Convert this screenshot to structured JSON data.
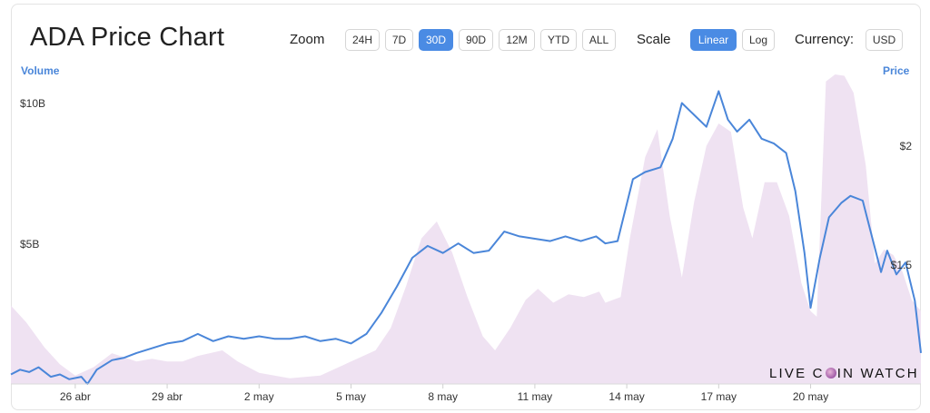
{
  "title": "ADA Price Chart",
  "zoom": {
    "label": "Zoom",
    "options": [
      "24H",
      "7D",
      "30D",
      "90D",
      "12M",
      "YTD",
      "ALL"
    ],
    "selected": "30D"
  },
  "scale": {
    "label": "Scale",
    "options": [
      "Linear",
      "Log"
    ],
    "selected": "Linear"
  },
  "currency": {
    "label": "Currency:",
    "value": "USD"
  },
  "watermark": {
    "part1": "LIVE C",
    "part2": "IN WATCH"
  },
  "colors": {
    "price_line": "#4a86d9",
    "volume_fill": "#efe2f2",
    "accent": "#4a8be4"
  },
  "chart_data": {
    "type": "line",
    "x_tick_labels": [
      "26 abr",
      "29 abr",
      "2 may",
      "5 may",
      "8 may",
      "11 may",
      "14 may",
      "17 may",
      "20 may"
    ],
    "x_days": [
      0,
      3,
      6,
      9,
      12,
      15,
      18,
      21,
      24
    ],
    "x_range_days": [
      -2.1,
      27.6
    ],
    "y_left": {
      "title": "Volume",
      "tick_labels": [
        "$5B",
        "$10B"
      ],
      "ticks": [
        5,
        10
      ],
      "ylim": [
        0,
        11.05
      ]
    },
    "y_right": {
      "title": "Price",
      "tick_labels": [
        "$1.5",
        "$2"
      ],
      "ticks": [
        1.5,
        2
      ],
      "ylim": [
        1.0,
        2.3
      ]
    },
    "series": [
      {
        "kind": "area",
        "points": [
          [
            -2.1,
            2.8
          ],
          [
            -1.6,
            2.2
          ],
          [
            -1.0,
            1.3
          ],
          [
            -0.5,
            0.7
          ],
          [
            0,
            0.3
          ],
          [
            0.6,
            0.6
          ],
          [
            1.2,
            1.1
          ],
          [
            2.0,
            0.8
          ],
          [
            2.5,
            0.9
          ],
          [
            3.0,
            0.8
          ],
          [
            3.5,
            0.8
          ],
          [
            4.0,
            1.0
          ],
          [
            4.8,
            1.2
          ],
          [
            5.3,
            0.8
          ],
          [
            6.0,
            0.4
          ],
          [
            7.0,
            0.2
          ],
          [
            8.0,
            0.3
          ],
          [
            9.0,
            0.8
          ],
          [
            9.8,
            1.2
          ],
          [
            10.3,
            2.0
          ],
          [
            10.8,
            3.5
          ],
          [
            11.3,
            5.2
          ],
          [
            11.8,
            5.8
          ],
          [
            12.3,
            4.7
          ],
          [
            12.8,
            3.1
          ],
          [
            13.3,
            1.7
          ],
          [
            13.7,
            1.2
          ],
          [
            14.2,
            2.0
          ],
          [
            14.7,
            3.0
          ],
          [
            15.1,
            3.4
          ],
          [
            15.6,
            2.9
          ],
          [
            16.1,
            3.2
          ],
          [
            16.6,
            3.1
          ],
          [
            17.1,
            3.3
          ],
          [
            17.3,
            2.9
          ],
          [
            17.8,
            3.1
          ],
          [
            18.1,
            5.2
          ],
          [
            18.6,
            8.1
          ],
          [
            19.0,
            9.1
          ],
          [
            19.4,
            6.0
          ],
          [
            19.8,
            3.8
          ],
          [
            20.2,
            6.5
          ],
          [
            20.6,
            8.5
          ],
          [
            21.0,
            9.3
          ],
          [
            21.4,
            9.0
          ],
          [
            21.8,
            6.3
          ],
          [
            22.1,
            5.2
          ],
          [
            22.5,
            7.2
          ],
          [
            22.9,
            7.2
          ],
          [
            23.3,
            6.0
          ],
          [
            23.7,
            3.6
          ],
          [
            24.0,
            2.6
          ],
          [
            24.2,
            2.4
          ],
          [
            24.5,
            10.8
          ],
          [
            24.8,
            11.05
          ],
          [
            25.1,
            11.0
          ],
          [
            25.4,
            10.4
          ],
          [
            25.8,
            7.8
          ],
          [
            26.1,
            4.3
          ],
          [
            26.4,
            4.8
          ],
          [
            26.7,
            4.6
          ],
          [
            27.0,
            4.0
          ],
          [
            27.3,
            3.0
          ],
          [
            27.6,
            2.6
          ]
        ]
      },
      {
        "kind": "line",
        "points": [
          [
            -2.1,
            1.04
          ],
          [
            -1.8,
            1.06
          ],
          [
            -1.5,
            1.05
          ],
          [
            -1.2,
            1.07
          ],
          [
            -0.8,
            1.03
          ],
          [
            -0.5,
            1.04
          ],
          [
            -0.2,
            1.02
          ],
          [
            0.2,
            1.03
          ],
          [
            0.4,
            1.0
          ],
          [
            0.7,
            1.06
          ],
          [
            1.2,
            1.1
          ],
          [
            1.6,
            1.11
          ],
          [
            2.0,
            1.13
          ],
          [
            2.5,
            1.15
          ],
          [
            3.0,
            1.17
          ],
          [
            3.5,
            1.18
          ],
          [
            4.0,
            1.21
          ],
          [
            4.5,
            1.18
          ],
          [
            5.0,
            1.2
          ],
          [
            5.5,
            1.19
          ],
          [
            6.0,
            1.2
          ],
          [
            6.5,
            1.19
          ],
          [
            7.0,
            1.19
          ],
          [
            7.5,
            1.2
          ],
          [
            8.0,
            1.18
          ],
          [
            8.5,
            1.19
          ],
          [
            9.0,
            1.17
          ],
          [
            9.5,
            1.21
          ],
          [
            10.0,
            1.3
          ],
          [
            10.5,
            1.41
          ],
          [
            11.0,
            1.53
          ],
          [
            11.5,
            1.58
          ],
          [
            12.0,
            1.55
          ],
          [
            12.5,
            1.59
          ],
          [
            13.0,
            1.55
          ],
          [
            13.5,
            1.56
          ],
          [
            14.0,
            1.64
          ],
          [
            14.5,
            1.62
          ],
          [
            15.0,
            1.61
          ],
          [
            15.5,
            1.6
          ],
          [
            16.0,
            1.62
          ],
          [
            16.5,
            1.6
          ],
          [
            17.0,
            1.62
          ],
          [
            17.3,
            1.59
          ],
          [
            17.7,
            1.6
          ],
          [
            18.2,
            1.86
          ],
          [
            18.6,
            1.89
          ],
          [
            19.1,
            1.91
          ],
          [
            19.5,
            2.03
          ],
          [
            19.8,
            2.18
          ],
          [
            20.2,
            2.13
          ],
          [
            20.6,
            2.08
          ],
          [
            21.0,
            2.23
          ],
          [
            21.3,
            2.11
          ],
          [
            21.6,
            2.06
          ],
          [
            22.0,
            2.11
          ],
          [
            22.4,
            2.03
          ],
          [
            22.8,
            2.01
          ],
          [
            23.2,
            1.97
          ],
          [
            23.5,
            1.81
          ],
          [
            23.8,
            1.55
          ],
          [
            24.0,
            1.32
          ],
          [
            24.3,
            1.53
          ],
          [
            24.6,
            1.7
          ],
          [
            25.0,
            1.76
          ],
          [
            25.3,
            1.79
          ],
          [
            25.7,
            1.77
          ],
          [
            26.0,
            1.62
          ],
          [
            26.3,
            1.47
          ],
          [
            26.5,
            1.56
          ],
          [
            26.8,
            1.46
          ],
          [
            27.1,
            1.51
          ],
          [
            27.4,
            1.35
          ],
          [
            27.6,
            1.13
          ]
        ]
      }
    ],
    "grid": false,
    "legend": "none"
  }
}
